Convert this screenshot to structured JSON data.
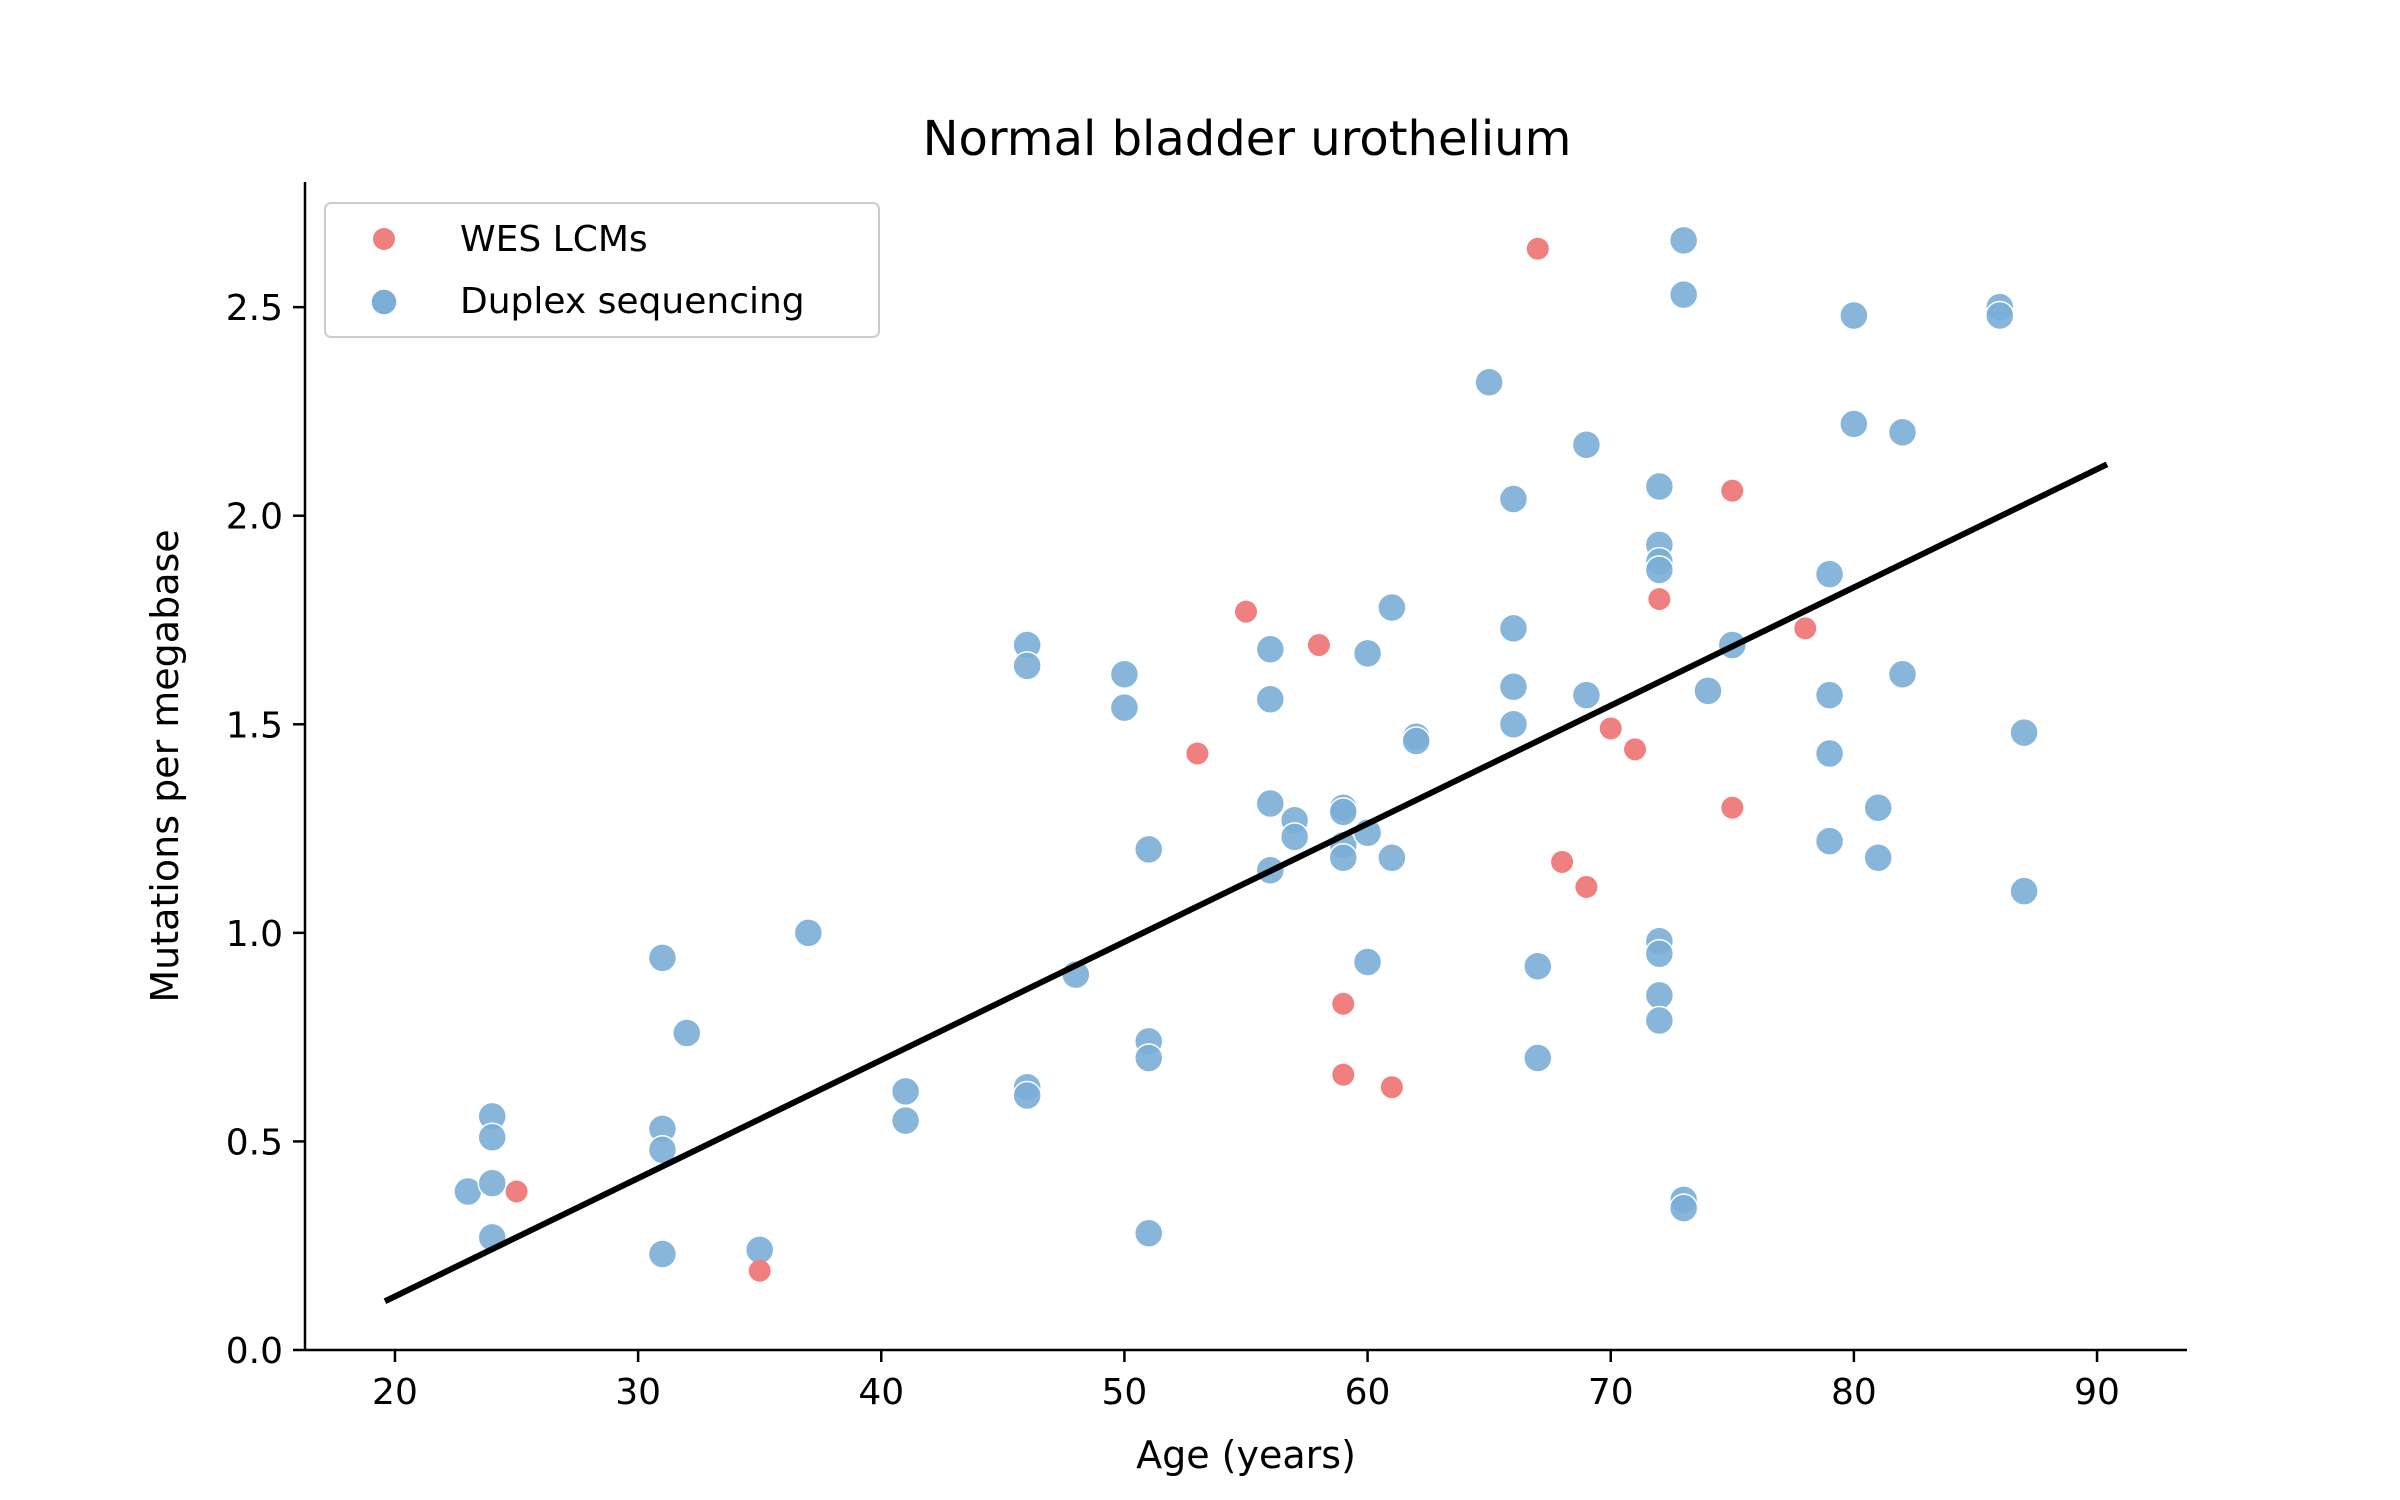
{
  "chart_data": {
    "type": "scatter",
    "title": "Normal bladder urothelium",
    "xlabel": "Age (years)",
    "ylabel": "Mutations per megabase",
    "xlim": [
      16.3,
      93.7
    ],
    "ylim": [
      0.0,
      2.8
    ],
    "xticks": [
      20,
      30,
      40,
      50,
      60,
      70,
      80,
      90
    ],
    "xtick_labels": [
      "20",
      "30",
      "40",
      "50",
      "60",
      "70",
      "80",
      "90"
    ],
    "yticks": [
      0.0,
      0.5,
      1.0,
      1.5,
      2.0,
      2.5
    ],
    "ytick_labels": [
      "0.0",
      "0.5",
      "1.0",
      "1.5",
      "2.0",
      "2.5"
    ],
    "grid": false,
    "legend_position": "top-left",
    "series": [
      {
        "name": "WES LCMs",
        "color": "#f08080",
        "points": [
          [
            25,
            0.38
          ],
          [
            35,
            0.19
          ],
          [
            53,
            1.43
          ],
          [
            55,
            1.77
          ],
          [
            58,
            1.69
          ],
          [
            59,
            0.83
          ],
          [
            59,
            0.66
          ],
          [
            61,
            0.63
          ],
          [
            67,
            2.64
          ],
          [
            68,
            1.17
          ],
          [
            69,
            1.11
          ],
          [
            70,
            1.49
          ],
          [
            71,
            1.44
          ],
          [
            72,
            1.8
          ],
          [
            75,
            2.06
          ],
          [
            75,
            1.3
          ],
          [
            78,
            1.73
          ]
        ]
      },
      {
        "name": "Duplex sequencing",
        "color": "#7aaed6",
        "points": [
          [
            23,
            0.38
          ],
          [
            24,
            0.56
          ],
          [
            24,
            0.51
          ],
          [
            24,
            0.4
          ],
          [
            24,
            0.27
          ],
          [
            31,
            0.94
          ],
          [
            31,
            0.53
          ],
          [
            31,
            0.48
          ],
          [
            31,
            0.23
          ],
          [
            32,
            0.76
          ],
          [
            35,
            0.24
          ],
          [
            37,
            1.0
          ],
          [
            41,
            0.62
          ],
          [
            41,
            0.55
          ],
          [
            46,
            1.69
          ],
          [
            46,
            1.64
          ],
          [
            46,
            0.63
          ],
          [
            46,
            0.61
          ],
          [
            48,
            0.9
          ],
          [
            50,
            1.62
          ],
          [
            50,
            1.54
          ],
          [
            51,
            1.2
          ],
          [
            51,
            0.74
          ],
          [
            51,
            0.7
          ],
          [
            51,
            0.28
          ],
          [
            56,
            1.68
          ],
          [
            56,
            1.56
          ],
          [
            56,
            1.31
          ],
          [
            56,
            1.15
          ],
          [
            57,
            1.27
          ],
          [
            57,
            1.23
          ],
          [
            59,
            1.3
          ],
          [
            59,
            1.29
          ],
          [
            59,
            1.21
          ],
          [
            59,
            1.18
          ],
          [
            60,
            1.67
          ],
          [
            60,
            1.24
          ],
          [
            60,
            0.93
          ],
          [
            61,
            1.78
          ],
          [
            61,
            1.18
          ],
          [
            62,
            1.47
          ],
          [
            62,
            1.46
          ],
          [
            65,
            2.32
          ],
          [
            66,
            2.04
          ],
          [
            66,
            1.73
          ],
          [
            66,
            1.59
          ],
          [
            66,
            1.5
          ],
          [
            67,
            0.92
          ],
          [
            67,
            0.7
          ],
          [
            69,
            2.17
          ],
          [
            69,
            1.57
          ],
          [
            72,
            2.07
          ],
          [
            72,
            1.93
          ],
          [
            72,
            1.89
          ],
          [
            72,
            1.87
          ],
          [
            72,
            0.98
          ],
          [
            72,
            0.95
          ],
          [
            72,
            0.85
          ],
          [
            72,
            0.79
          ],
          [
            73,
            2.66
          ],
          [
            73,
            2.53
          ],
          [
            73,
            0.36
          ],
          [
            73,
            0.34
          ],
          [
            74,
            1.58
          ],
          [
            75,
            1.69
          ],
          [
            79,
            1.86
          ],
          [
            79,
            1.57
          ],
          [
            79,
            1.43
          ],
          [
            79,
            1.22
          ],
          [
            80,
            2.48
          ],
          [
            80,
            2.22
          ],
          [
            81,
            1.3
          ],
          [
            81,
            1.18
          ],
          [
            82,
            2.2
          ],
          [
            82,
            1.62
          ],
          [
            86,
            2.5
          ],
          [
            86,
            2.48
          ],
          [
            87,
            1.48
          ],
          [
            87,
            1.1
          ]
        ]
      }
    ],
    "fit_line": {
      "color": "#000000",
      "x": [
        19.7,
        90.3
      ],
      "y": [
        0.12,
        2.12
      ]
    }
  }
}
